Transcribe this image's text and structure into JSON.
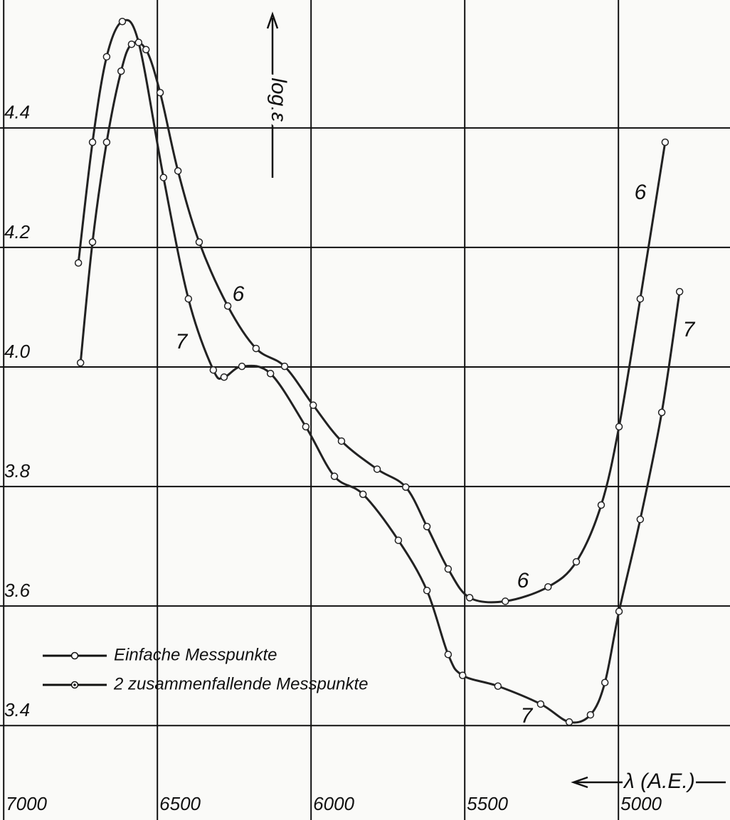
{
  "chart_data": {
    "type": "line",
    "y_label": "log ε",
    "x_label": "λ (A.E.)",
    "xlim": [
      7012,
      4637
    ],
    "ylim": [
      3.242,
      4.614
    ],
    "xticks": [
      7000,
      6500,
      6000,
      5500,
      5000
    ],
    "yticks": [
      4.4,
      4.2,
      {
        "value": 4,
        "label": "4.0"
      },
      3.8,
      3.6,
      3.4
    ],
    "grid": true,
    "legend": [
      "Einfache Messpunkte",
      "2 zusammenfallende Messpunkte"
    ],
    "series": [
      {
        "name": "6",
        "color": "#222222",
        "x": [
          6750,
          6711,
          6665,
          6618,
          6584,
          6537,
          6491,
          6433,
          6364,
          6271,
          6179,
          6086,
          5993,
          5901,
          5785,
          5692,
          5623,
          5554,
          5484,
          5368,
          5229,
          5137,
          5056,
          4998,
          4929,
          4848
        ],
        "values": [
          4.007,
          4.209,
          4.376,
          4.495,
          4.54,
          4.531,
          4.459,
          4.328,
          4.209,
          4.102,
          4.031,
          4.001,
          3.936,
          3.876,
          3.829,
          3.799,
          3.733,
          3.662,
          3.614,
          3.608,
          3.632,
          3.674,
          3.769,
          3.9,
          4.114,
          4.376
        ]
      },
      {
        "name": "7",
        "color": "#222222",
        "x": [
          6757,
          6711,
          6665,
          6614,
          6561,
          6480,
          6399,
          6318,
          6283,
          6225,
          6132,
          6017,
          5924,
          5831,
          5716,
          5623,
          5554,
          5507,
          5392,
          5253,
          5160,
          5091,
          5044,
          4998,
          4929,
          4859,
          4801
        ],
        "values": [
          4.174,
          4.376,
          4.519,
          4.578,
          4.543,
          4.317,
          4.114,
          3.995,
          3.983,
          4.001,
          3.989,
          3.9,
          3.817,
          3.787,
          3.71,
          3.626,
          3.519,
          3.484,
          3.466,
          3.436,
          3.406,
          3.418,
          3.472,
          3.591,
          3.745,
          3.924,
          4.126
        ]
      }
    ]
  }
}
